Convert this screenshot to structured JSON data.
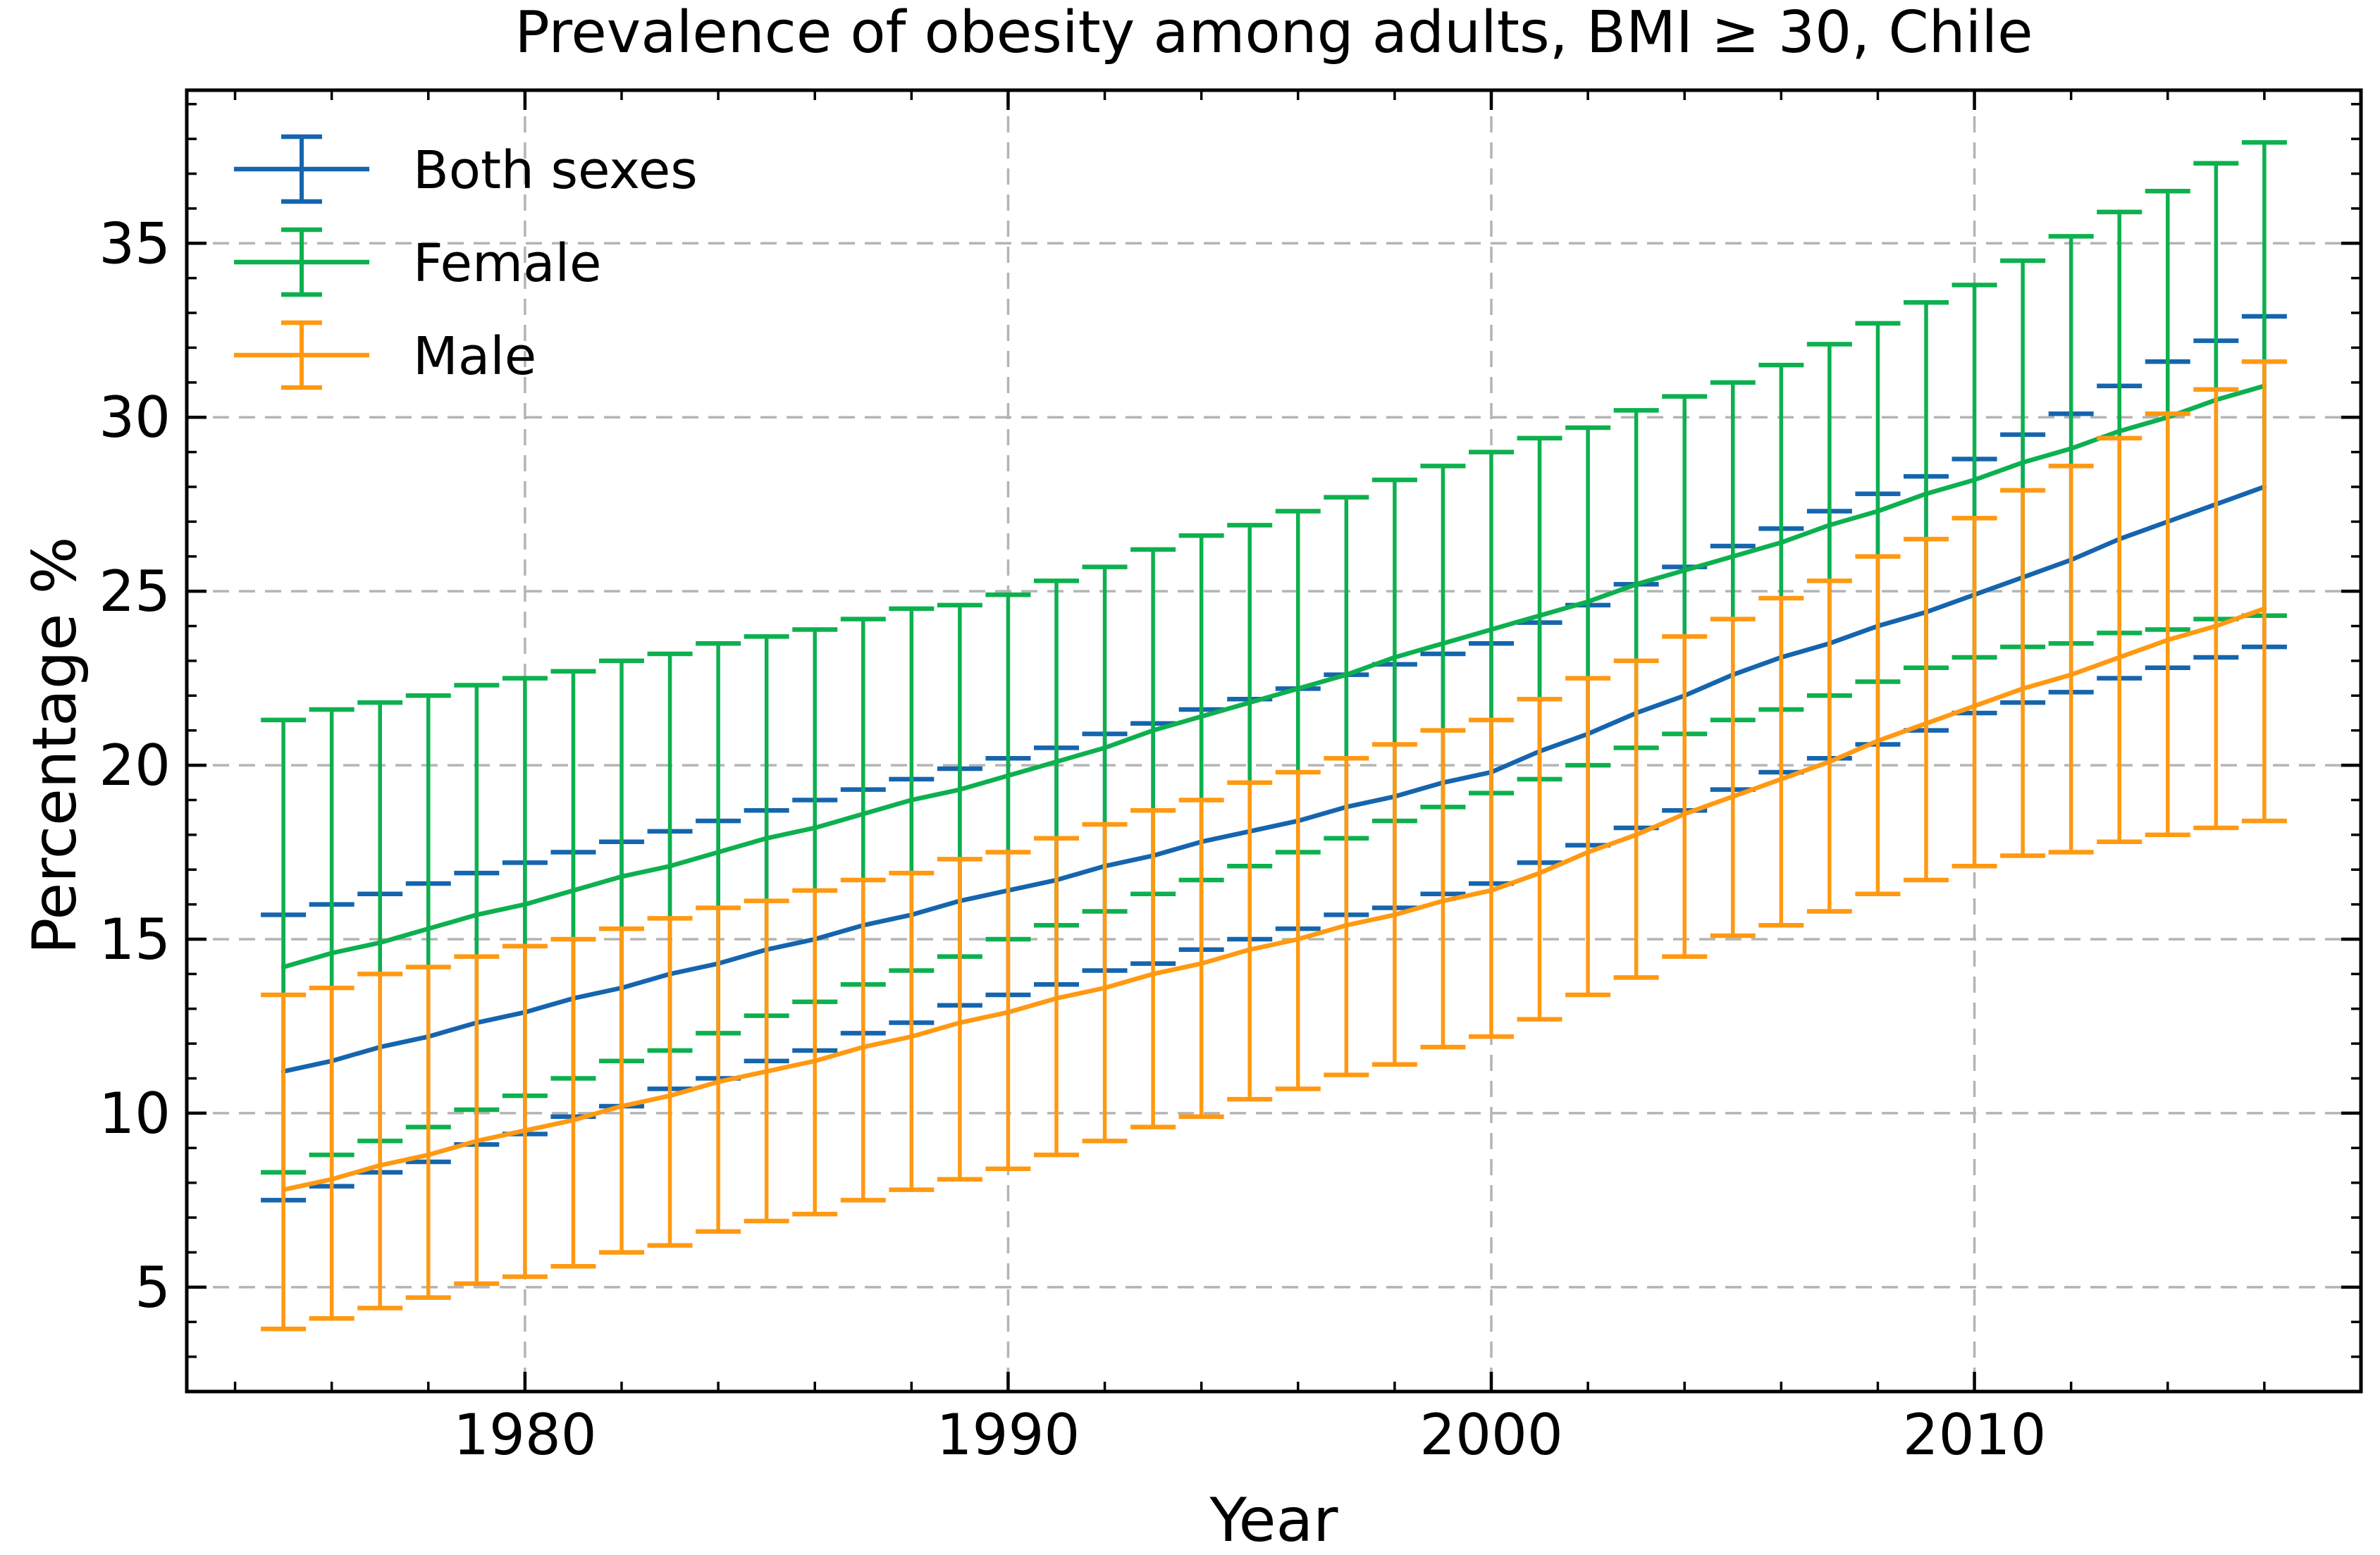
{
  "figure": {
    "kind": "matplotlib-style line chart with error bars",
    "background": "#ffffff",
    "text_color": "#000000",
    "grid_color": "#b4b4b4",
    "spine_color": "#000000"
  },
  "legend": {
    "position": "upper left",
    "items": [
      {
        "label": "Both sexes",
        "color": "#1565ae"
      },
      {
        "label": "Female",
        "color": "#0db04e"
      },
      {
        "label": "Male",
        "color": "#ff9912"
      }
    ]
  },
  "chart_data": {
    "type": "line",
    "error_bars": true,
    "title": "Prevalence of obesity among adults, BMI ≥ 30, Chile",
    "xlabel": "Year",
    "ylabel": "Percentage %",
    "xlim": [
      1973,
      2018
    ],
    "ylim": [
      2.0,
      39.4
    ],
    "xticks": [
      1980,
      1990,
      2000,
      2010
    ],
    "yticks": [
      5,
      10,
      15,
      20,
      25,
      30,
      35
    ],
    "x_minor_step": 2,
    "y_minor_step": 1,
    "grid": true,
    "legend_position": "upper left",
    "x": [
      1975,
      1976,
      1977,
      1978,
      1979,
      1980,
      1981,
      1982,
      1983,
      1984,
      1985,
      1986,
      1987,
      1988,
      1989,
      1990,
      1991,
      1992,
      1993,
      1994,
      1995,
      1996,
      1997,
      1998,
      1999,
      2000,
      2001,
      2002,
      2003,
      2004,
      2005,
      2006,
      2007,
      2008,
      2009,
      2010,
      2011,
      2012,
      2013,
      2014,
      2015,
      2016
    ],
    "series": [
      {
        "name": "Both sexes",
        "color": "#1565ae",
        "values": [
          11.2,
          11.5,
          11.9,
          12.2,
          12.6,
          12.9,
          13.3,
          13.6,
          14.0,
          14.3,
          14.7,
          15.0,
          15.4,
          15.7,
          16.1,
          16.4,
          16.7,
          17.1,
          17.4,
          17.8,
          18.1,
          18.4,
          18.8,
          19.1,
          19.5,
          19.8,
          20.4,
          20.9,
          21.5,
          22.0,
          22.6,
          23.1,
          23.5,
          24.0,
          24.4,
          24.9,
          25.4,
          25.9,
          26.5,
          27.0,
          27.5,
          28.0
        ],
        "lower": [
          7.5,
          7.9,
          8.3,
          8.6,
          9.1,
          9.4,
          9.9,
          10.2,
          10.7,
          11.0,
          11.5,
          11.8,
          12.3,
          12.6,
          13.1,
          13.4,
          13.7,
          14.1,
          14.3,
          14.7,
          15.0,
          15.3,
          15.7,
          15.9,
          16.3,
          16.6,
          17.2,
          17.7,
          18.2,
          18.7,
          19.3,
          19.8,
          20.2,
          20.6,
          21.0,
          21.5,
          21.8,
          22.1,
          22.5,
          22.8,
          23.1,
          23.4
        ],
        "upper": [
          15.7,
          16.0,
          16.3,
          16.6,
          16.9,
          17.2,
          17.5,
          17.8,
          18.1,
          18.4,
          18.7,
          19.0,
          19.3,
          19.6,
          19.9,
          20.2,
          20.5,
          20.9,
          21.2,
          21.6,
          21.9,
          22.2,
          22.6,
          22.9,
          23.2,
          23.5,
          24.1,
          24.6,
          25.2,
          25.7,
          26.3,
          26.8,
          27.3,
          27.8,
          28.3,
          28.8,
          29.5,
          30.1,
          30.9,
          31.6,
          32.2,
          32.9
        ]
      },
      {
        "name": "Female",
        "color": "#0db04e",
        "values": [
          14.2,
          14.6,
          14.9,
          15.3,
          15.7,
          16.0,
          16.4,
          16.8,
          17.1,
          17.5,
          17.9,
          18.2,
          18.6,
          19.0,
          19.3,
          19.7,
          20.1,
          20.5,
          21.0,
          21.4,
          21.8,
          22.2,
          22.6,
          23.1,
          23.5,
          23.9,
          24.3,
          24.7,
          25.2,
          25.6,
          26.0,
          26.4,
          26.9,
          27.3,
          27.8,
          28.2,
          28.7,
          29.1,
          29.6,
          30.0,
          30.5,
          30.9
        ],
        "lower": [
          8.3,
          8.8,
          9.2,
          9.6,
          10.1,
          10.5,
          11.0,
          11.5,
          11.8,
          12.3,
          12.8,
          13.2,
          13.7,
          14.1,
          14.5,
          15.0,
          15.4,
          15.8,
          16.3,
          16.7,
          17.1,
          17.5,
          17.9,
          18.4,
          18.8,
          19.2,
          19.6,
          20.0,
          20.5,
          20.9,
          21.3,
          21.6,
          22.0,
          22.4,
          22.8,
          23.1,
          23.4,
          23.5,
          23.8,
          23.9,
          24.2,
          24.3
        ],
        "upper": [
          21.3,
          21.6,
          21.8,
          22.0,
          22.3,
          22.5,
          22.7,
          23.0,
          23.2,
          23.5,
          23.7,
          23.9,
          24.2,
          24.5,
          24.6,
          24.9,
          25.3,
          25.7,
          26.2,
          26.6,
          26.9,
          27.3,
          27.7,
          28.2,
          28.6,
          29.0,
          29.4,
          29.7,
          30.2,
          30.6,
          31.0,
          31.5,
          32.1,
          32.7,
          33.3,
          33.8,
          34.5,
          35.2,
          35.9,
          36.5,
          37.3,
          37.9
        ]
      },
      {
        "name": "Male",
        "color": "#ff9912",
        "values": [
          7.8,
          8.1,
          8.5,
          8.8,
          9.2,
          9.5,
          9.8,
          10.2,
          10.5,
          10.9,
          11.2,
          11.5,
          11.9,
          12.2,
          12.6,
          12.9,
          13.3,
          13.6,
          14.0,
          14.3,
          14.7,
          15.0,
          15.4,
          15.7,
          16.1,
          16.4,
          16.9,
          17.5,
          18.0,
          18.6,
          19.1,
          19.6,
          20.1,
          20.7,
          21.2,
          21.7,
          22.2,
          22.6,
          23.1,
          23.6,
          24.0,
          24.5
        ],
        "lower": [
          3.8,
          4.1,
          4.4,
          4.7,
          5.1,
          5.3,
          5.6,
          6.0,
          6.2,
          6.6,
          6.9,
          7.1,
          7.5,
          7.8,
          8.1,
          8.4,
          8.8,
          9.2,
          9.6,
          9.9,
          10.4,
          10.7,
          11.1,
          11.4,
          11.9,
          12.2,
          12.7,
          13.4,
          13.9,
          14.5,
          15.1,
          15.4,
          15.8,
          16.3,
          16.7,
          17.1,
          17.4,
          17.5,
          17.8,
          18.0,
          18.2,
          18.4
        ],
        "upper": [
          13.4,
          13.6,
          14.0,
          14.2,
          14.5,
          14.8,
          15.0,
          15.3,
          15.6,
          15.9,
          16.1,
          16.4,
          16.7,
          16.9,
          17.3,
          17.5,
          17.9,
          18.3,
          18.7,
          19.0,
          19.5,
          19.8,
          20.2,
          20.6,
          21.0,
          21.3,
          21.9,
          22.5,
          23.0,
          23.7,
          24.2,
          24.8,
          25.3,
          26.0,
          26.5,
          27.1,
          27.9,
          28.6,
          29.4,
          30.1,
          30.8,
          31.6
        ]
      }
    ]
  }
}
